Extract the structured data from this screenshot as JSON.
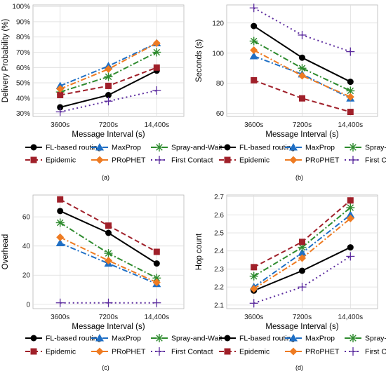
{
  "chart_data": [
    {
      "type": "line",
      "panel": "(a)",
      "xlabel": "Message Interval (s)",
      "ylabel": "Delivery Probability (%)",
      "categories": [
        "3600s",
        "7200s",
        "14,400s"
      ],
      "ylim": [
        28,
        101
      ],
      "yticks": [
        30,
        40,
        50,
        60,
        70,
        80,
        90,
        100
      ],
      "ytick_labels": [
        "30%",
        "40%",
        "50%",
        "60%",
        "70%",
        "80%",
        "90%",
        "100%"
      ],
      "grid": true,
      "series": [
        {
          "name": "FL-based routing",
          "values": [
            34,
            42,
            58
          ]
        },
        {
          "name": "MaxProp",
          "values": [
            48,
            61,
            76
          ]
        },
        {
          "name": "Spray-and-Wait",
          "values": [
            44,
            54,
            70
          ]
        },
        {
          "name": "Epidemic",
          "values": [
            42,
            48,
            60
          ]
        },
        {
          "name": "PRoPHET",
          "values": [
            46,
            59,
            76
          ]
        },
        {
          "name": "First Contact",
          "values": [
            31,
            38,
            45
          ]
        }
      ]
    },
    {
      "type": "line",
      "panel": "(b)",
      "xlabel": "Message Interval (s)",
      "ylabel": "Seconds (s)",
      "categories": [
        "3600s",
        "7200s",
        "14,400s"
      ],
      "ylim": [
        58,
        132
      ],
      "yticks": [
        60,
        80,
        100,
        120
      ],
      "ytick_labels": [
        "60",
        "80",
        "100",
        "120"
      ],
      "grid": true,
      "series": [
        {
          "name": "FL-based routing",
          "values": [
            118,
            97,
            81
          ]
        },
        {
          "name": "MaxProp",
          "values": [
            98,
            86,
            70
          ]
        },
        {
          "name": "Spray-and-Wait",
          "values": [
            108,
            90,
            75
          ]
        },
        {
          "name": "Epidemic",
          "values": [
            82,
            70,
            61
          ]
        },
        {
          "name": "PRoPHET",
          "values": [
            102,
            85,
            71
          ]
        },
        {
          "name": "First Contact",
          "values": [
            130,
            112,
            101
          ]
        }
      ]
    },
    {
      "type": "line",
      "panel": "(c)",
      "xlabel": "Message Interval (s)",
      "ylabel": "Overhead",
      "categories": [
        "3600s",
        "7200s",
        "14,400s"
      ],
      "ylim": [
        -3,
        75
      ],
      "yticks": [
        0,
        20,
        40,
        60
      ],
      "ytick_labels": [
        "0",
        "20",
        "40",
        "60"
      ],
      "grid": true,
      "series": [
        {
          "name": "FL-based routing",
          "values": [
            64,
            49,
            28
          ]
        },
        {
          "name": "MaxProp",
          "values": [
            42,
            28,
            14
          ]
        },
        {
          "name": "Spray-and-Wait",
          "values": [
            56,
            35,
            18
          ]
        },
        {
          "name": "Epidemic",
          "values": [
            72,
            54,
            36
          ]
        },
        {
          "name": "PRoPHET",
          "values": [
            46,
            30,
            15
          ]
        },
        {
          "name": "First Contact",
          "values": [
            1,
            1,
            1
          ]
        }
      ]
    },
    {
      "type": "line",
      "panel": "(d)",
      "xlabel": "Message Interval (s)",
      "ylabel": "Hop count",
      "categories": [
        "3600s",
        "7200s",
        "14,400s"
      ],
      "ylim": [
        2.08,
        2.71
      ],
      "yticks": [
        2.1,
        2.2,
        2.3,
        2.4,
        2.5,
        2.6,
        2.7
      ],
      "ytick_labels": [
        "2.1",
        "2.2",
        "2.3",
        "2.4",
        "2.5",
        "2.6",
        "2.7"
      ],
      "grid": true,
      "series": [
        {
          "name": "FL-based routing",
          "values": [
            2.18,
            2.29,
            2.42
          ]
        },
        {
          "name": "MaxProp",
          "values": [
            2.2,
            2.39,
            2.6
          ]
        },
        {
          "name": "Spray-and-Wait",
          "values": [
            2.26,
            2.42,
            2.64
          ]
        },
        {
          "name": "Epidemic",
          "values": [
            2.31,
            2.45,
            2.68
          ]
        },
        {
          "name": "PRoPHET",
          "values": [
            2.19,
            2.36,
            2.58
          ]
        },
        {
          "name": "First Contact",
          "values": [
            2.11,
            2.2,
            2.37
          ]
        }
      ]
    }
  ],
  "styles": [
    {
      "name": "FL-based routing",
      "color": "#000000",
      "dash": "solid",
      "marker": "circle"
    },
    {
      "name": "MaxProp",
      "color": "#1f6fc5",
      "dash": "dashdot",
      "marker": "triangle"
    },
    {
      "name": "Spray-and-Wait",
      "color": "#2e8b2e",
      "dash": "dashdot",
      "marker": "star"
    },
    {
      "name": "Epidemic",
      "color": "#a0202a",
      "dash": "dash",
      "marker": "square"
    },
    {
      "name": "PRoPHET",
      "color": "#ee7b22",
      "dash": "dashdot",
      "marker": "diamond"
    },
    {
      "name": "First Contact",
      "color": "#5b2b9e",
      "dash": "dot",
      "marker": "plus"
    }
  ],
  "legend": {
    "placement": "below",
    "row1": [
      "FL-based routing",
      "MaxProp",
      "Spray-and-Wait"
    ],
    "row2": [
      "Epidemic",
      "PRoPHET",
      "First Contact"
    ]
  }
}
